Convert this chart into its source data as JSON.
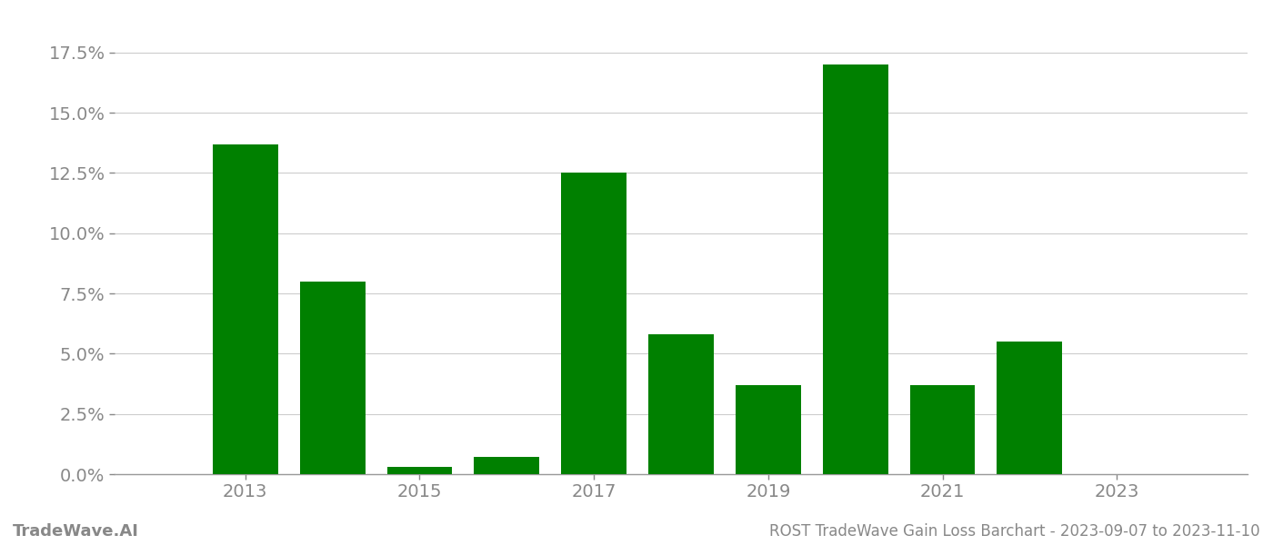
{
  "years": [
    2013,
    2014,
    2015,
    2016,
    2017,
    2018,
    2019,
    2020,
    2021,
    2022,
    2023
  ],
  "values": [
    0.137,
    0.08,
    0.003,
    0.007,
    0.125,
    0.058,
    0.037,
    0.17,
    0.037,
    0.055,
    0.0
  ],
  "bar_color": "#008000",
  "background_color": "#ffffff",
  "grid_color": "#cccccc",
  "title": "ROST TradeWave Gain Loss Barchart - 2023-09-07 to 2023-11-10",
  "watermark": "TradeWave.AI",
  "ytick_values": [
    0.0,
    0.025,
    0.05,
    0.075,
    0.1,
    0.125,
    0.15,
    0.175
  ],
  "ylim": [
    0,
    0.19
  ],
  "xtick_labels": [
    "2013",
    "2015",
    "2017",
    "2019",
    "2021",
    "2023"
  ],
  "xtick_positions": [
    2013,
    2015,
    2017,
    2019,
    2021,
    2023
  ],
  "axis_color": "#888888",
  "tick_label_color": "#888888",
  "bottom_text_color": "#888888",
  "title_fontsize": 12,
  "tick_fontsize": 14,
  "watermark_fontsize": 13,
  "bar_width": 0.75,
  "xlim": [
    2011.5,
    2024.5
  ]
}
